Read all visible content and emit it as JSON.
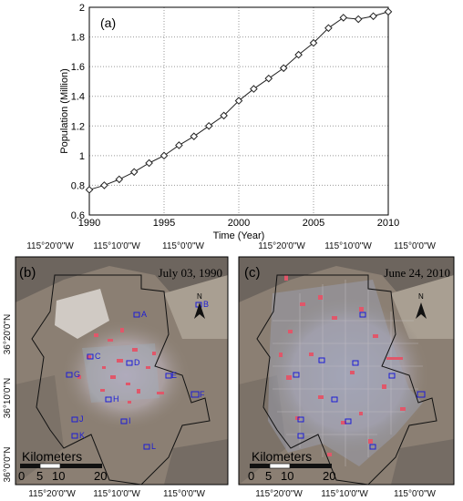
{
  "chart_data": {
    "type": "line",
    "panel_label": "(a)",
    "xlabel": "Time (Year)",
    "ylabel": "Population (Million)",
    "xlim": [
      1990,
      2010
    ],
    "ylim": [
      0.6,
      2.0
    ],
    "xticks": [
      "1990",
      "1995",
      "2000",
      "2005",
      "2010"
    ],
    "yticks": [
      "0.6",
      "0.8",
      "1",
      "1.2",
      "1.4",
      "1.6",
      "1.8",
      "2"
    ],
    "grid": true,
    "marker": "diamond",
    "x": [
      1990,
      1991,
      1992,
      1993,
      1994,
      1995,
      1996,
      1997,
      1998,
      1999,
      2000,
      2001,
      2002,
      2003,
      2004,
      2005,
      2006,
      2007,
      2008,
      2009,
      2010
    ],
    "y": [
      0.77,
      0.8,
      0.84,
      0.89,
      0.95,
      1.0,
      1.07,
      1.13,
      1.2,
      1.27,
      1.37,
      1.45,
      1.52,
      1.59,
      1.68,
      1.76,
      1.86,
      1.93,
      1.92,
      1.94,
      1.97
    ]
  },
  "maps": {
    "b": {
      "panel_label": "(b)",
      "date": "July 03, 1990",
      "top_labels": [
        "115°20'0\"W",
        "115°10'0\"W",
        "115°0'0\"W"
      ],
      "bottom_labels": [
        "115°20'0\"W",
        "115°10'0\"W",
        "115°0'0\"W"
      ],
      "left_labels": [
        "36°20'0\"N",
        "36°10'0\"N",
        "36°0'0\"N"
      ],
      "site_labels": [
        "A",
        "B",
        "C",
        "D",
        "E",
        "F",
        "G",
        "H",
        "I",
        "J",
        "K",
        "L"
      ],
      "scale_title": "Kilometers",
      "scale_ticks": [
        "0",
        "5",
        "10",
        "20"
      ],
      "north": "N"
    },
    "c": {
      "panel_label": "(c)",
      "date": "June 24, 2010",
      "top_labels": [
        "115°20'0\"W",
        "115°10'0\"W",
        "115°0'0\"W"
      ],
      "bottom_labels": [
        "115°20'0\"W",
        "115°10'0\"W",
        "115°0'0\"W"
      ],
      "scale_title": "Kilometers",
      "scale_ticks": [
        "0",
        "5",
        "10",
        "20"
      ],
      "north": "N"
    }
  }
}
